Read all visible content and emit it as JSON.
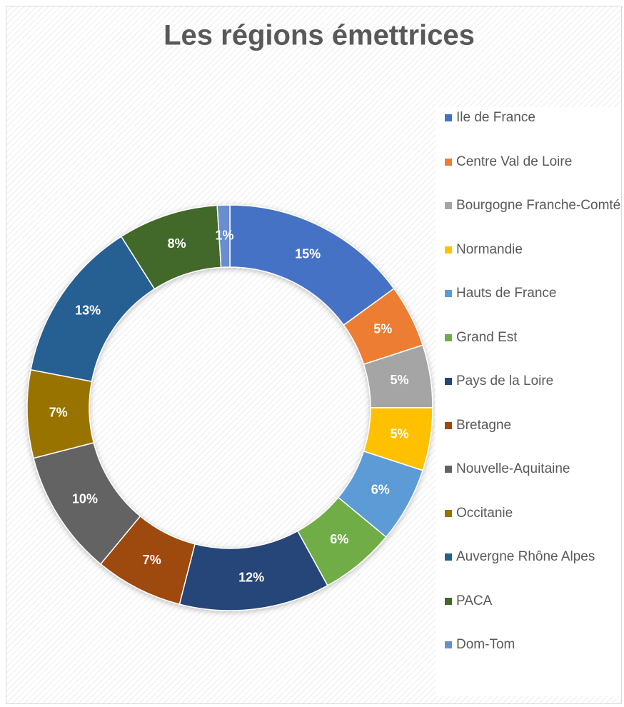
{
  "chart_data": {
    "type": "donut",
    "title": "Les régions émettrices",
    "categories": [
      "Ile de France",
      "Centre Val de Loire",
      "Bourgogne Franche-Comté",
      "Normandie",
      "Hauts de France",
      "Grand Est",
      "Pays de la Loire",
      "Bretagne",
      "Nouvelle-Aquitaine",
      "Occitanie",
      "Auvergne Rhône Alpes",
      "PACA",
      "Dom-Tom"
    ],
    "values": [
      15,
      5,
      5,
      5,
      6,
      6,
      12,
      7,
      10,
      7,
      13,
      8,
      1
    ],
    "value_labels": [
      "15%",
      "5%",
      "5%",
      "5%",
      "6%",
      "6%",
      "12%",
      "7%",
      "10%",
      "7%",
      "13%",
      "8%",
      "1%"
    ],
    "colors": [
      "#4472c4",
      "#ed7d31",
      "#a5a5a5",
      "#ffc000",
      "#5b9bd5",
      "#70ad47",
      "#264478",
      "#9e480e",
      "#636363",
      "#997300",
      "#255e91",
      "#43682b",
      "#698ed0"
    ],
    "legend": "right"
  }
}
